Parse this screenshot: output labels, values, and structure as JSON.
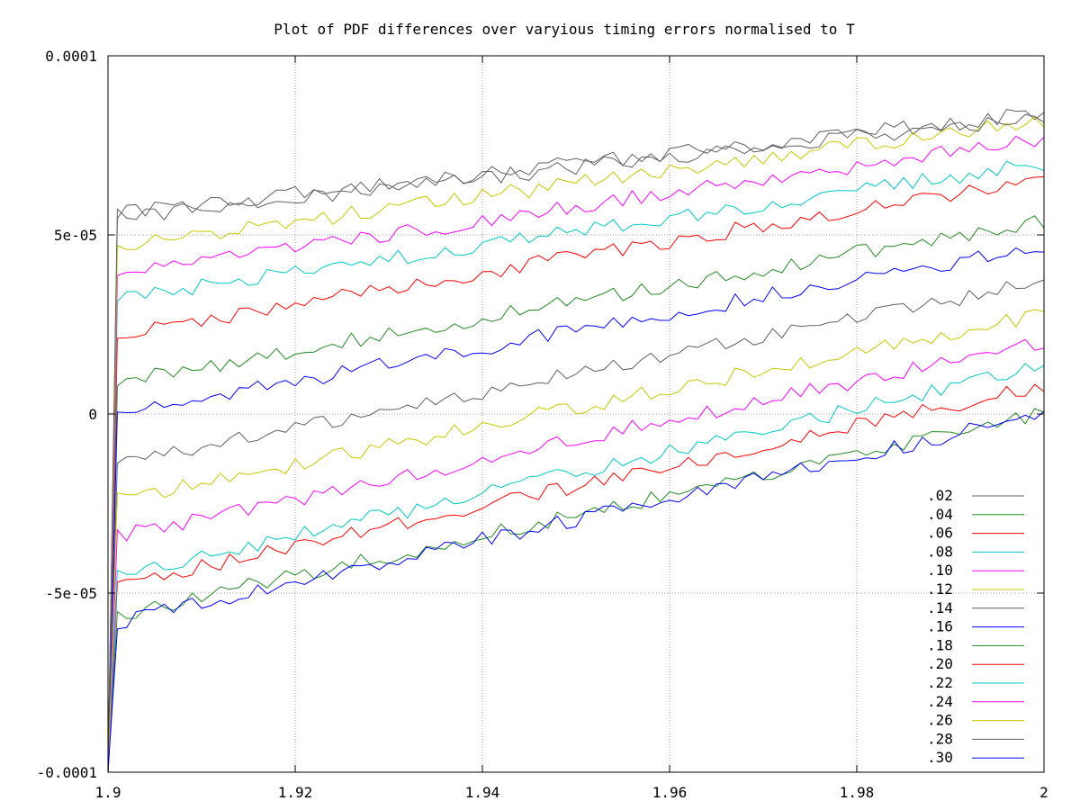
{
  "chart_data": {
    "type": "line",
    "title": "Plot of PDF differences over varyious timing errors normalised to T",
    "xlabel": "",
    "ylabel": "",
    "xlim": [
      1.9,
      2.0
    ],
    "ylim": [
      -0.0001,
      0.0001
    ],
    "x_ticks": [
      {
        "value": 1.9,
        "label": "1.9"
      },
      {
        "value": 1.92,
        "label": "1.92"
      },
      {
        "value": 1.94,
        "label": "1.94"
      },
      {
        "value": 1.96,
        "label": "1.96"
      },
      {
        "value": 1.98,
        "label": "1.98"
      },
      {
        "value": 2.0,
        "label": "2"
      }
    ],
    "y_ticks": [
      {
        "value": 0.0001,
        "label": "0.0001"
      },
      {
        "value": 5e-05,
        "label": "5e-05"
      },
      {
        "value": 0,
        "label": "0"
      },
      {
        "value": -5e-05,
        "label": "-5e-05"
      },
      {
        "value": -0.0001,
        "label": "-0.0001"
      }
    ],
    "grid": true,
    "legend_position": "bottom-right",
    "x_sample": {
      "start": 1.9,
      "end": 2.0,
      "step": 0.001
    },
    "series": [
      {
        "name": ".02",
        "color": "#606060",
        "y_start": 5.6e-05,
        "y_end": 8.4e-05
      },
      {
        "name": ".04",
        "color": "#228b22",
        "y_start": 9e-06,
        "y_end": 5.4e-05
      },
      {
        "name": ".06",
        "color": "#ff0000",
        "y_start": 2.2e-05,
        "y_end": 6.6e-05
      },
      {
        "name": ".08",
        "color": "#00c8c8",
        "y_start": 3.2e-05,
        "y_end": 7e-05
      },
      {
        "name": ".10",
        "color": "#ff00ff",
        "y_start": 3.9e-05,
        "y_end": 7.7e-05
      },
      {
        "name": ".12",
        "color": "#c8c800",
        "y_start": 4.7e-05,
        "y_end": 8.2e-05
      },
      {
        "name": ".14",
        "color": "#606060",
        "y_start": -1.4e-05,
        "y_end": 3.7e-05
      },
      {
        "name": ".16",
        "color": "#0000ff",
        "y_start": 0.0,
        "y_end": 4.7e-05
      },
      {
        "name": ".18",
        "color": "#228b22",
        "y_start": -5.6e-05,
        "y_end": 0.0
      },
      {
        "name": ".20",
        "color": "#ff0000",
        "y_start": -4.8e-05,
        "y_end": 8e-06
      },
      {
        "name": ".22",
        "color": "#00c8c8",
        "y_start": -4.5e-05,
        "y_end": 1.3e-05
      },
      {
        "name": ".24",
        "color": "#ff00ff",
        "y_start": -3.4e-05,
        "y_end": 2e-05
      },
      {
        "name": ".26",
        "color": "#c8c800",
        "y_start": -2.4e-05,
        "y_end": 2.8e-05
      },
      {
        "name": ".28",
        "color": "#606060",
        "y_start": 5.5e-05,
        "y_end": 8.3e-05
      },
      {
        "name": ".30",
        "color": "#0000ff",
        "y_start": -5.8e-05,
        "y_end": 0.0
      }
    ]
  }
}
